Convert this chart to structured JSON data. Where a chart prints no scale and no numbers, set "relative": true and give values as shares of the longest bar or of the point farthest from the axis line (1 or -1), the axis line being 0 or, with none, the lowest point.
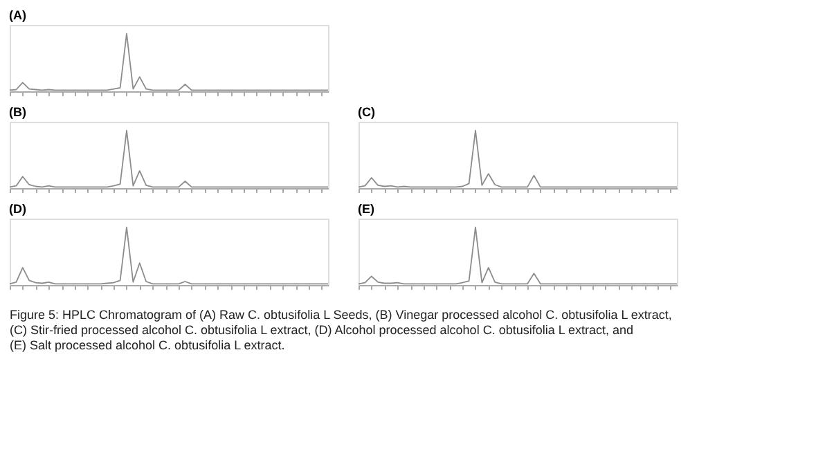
{
  "chart_data": [
    {
      "type": "line",
      "title": "(A)",
      "relative": true,
      "tick_labels": false,
      "grid": false,
      "categories": [
        null,
        null,
        null,
        null,
        null,
        null,
        null,
        null,
        null,
        null,
        null,
        null,
        null,
        null,
        null,
        null,
        null,
        null,
        null,
        null,
        null,
        null,
        null,
        null,
        null,
        null,
        null,
        null,
        null,
        null,
        null,
        null,
        null,
        null,
        null,
        null,
        null,
        null,
        null,
        null,
        null,
        null,
        null,
        null,
        null,
        null,
        null,
        null,
        null,
        null
      ],
      "series": [
        {
          "color": "#8c8c8c",
          "values": [
            0.02,
            0.03,
            0.15,
            0.04,
            0.03,
            0.02,
            0.03,
            0.02,
            0.02,
            0.02,
            0.02,
            0.02,
            0.02,
            0.02,
            0.02,
            0.02,
            0.04,
            0.06,
            1,
            0.04,
            0.25,
            0.04,
            0.02,
            0.02,
            0.02,
            0.02,
            0.02,
            0.12,
            0.02,
            0.02,
            0.02,
            0.02,
            0.02,
            0.02,
            0.02,
            0.02,
            0.02,
            0.02,
            0.02,
            0.02,
            0.02,
            0.02,
            0.02,
            0.02,
            0.02,
            0.02,
            0.02,
            0.02,
            0.02,
            0.02
          ]
        }
      ]
    },
    {
      "type": "line",
      "title": "(B)",
      "relative": true,
      "tick_labels": false,
      "grid": false,
      "categories": [
        null,
        null,
        null,
        null,
        null,
        null,
        null,
        null,
        null,
        null,
        null,
        null,
        null,
        null,
        null,
        null,
        null,
        null,
        null,
        null,
        null,
        null,
        null,
        null,
        null,
        null,
        null,
        null,
        null,
        null,
        null,
        null,
        null,
        null,
        null,
        null,
        null,
        null,
        null,
        null,
        null,
        null,
        null,
        null,
        null,
        null,
        null,
        null,
        null,
        null
      ],
      "series": [
        {
          "color": "#8c8c8c",
          "values": [
            0.02,
            0.04,
            0.2,
            0.06,
            0.03,
            0.02,
            0.04,
            0.02,
            0.02,
            0.02,
            0.02,
            0.02,
            0.02,
            0.02,
            0.02,
            0.02,
            0.04,
            0.07,
            1,
            0.04,
            0.3,
            0.05,
            0.02,
            0.02,
            0.02,
            0.02,
            0.02,
            0.12,
            0.02,
            0.02,
            0.02,
            0.02,
            0.02,
            0.02,
            0.02,
            0.02,
            0.02,
            0.02,
            0.02,
            0.02,
            0.02,
            0.02,
            0.02,
            0.02,
            0.02,
            0.02,
            0.02,
            0.02,
            0.02,
            0.02
          ]
        }
      ]
    },
    {
      "type": "line",
      "title": "(C)",
      "relative": true,
      "tick_labels": false,
      "grid": false,
      "categories": [
        null,
        null,
        null,
        null,
        null,
        null,
        null,
        null,
        null,
        null,
        null,
        null,
        null,
        null,
        null,
        null,
        null,
        null,
        null,
        null,
        null,
        null,
        null,
        null,
        null,
        null,
        null,
        null,
        null,
        null,
        null,
        null,
        null,
        null,
        null,
        null,
        null,
        null,
        null,
        null,
        null,
        null,
        null,
        null,
        null,
        null,
        null,
        null,
        null,
        null
      ],
      "series": [
        {
          "color": "#8c8c8c",
          "values": [
            0.02,
            0.04,
            0.18,
            0.05,
            0.03,
            0.04,
            0.02,
            0.03,
            0.02,
            0.02,
            0.02,
            0.02,
            0.02,
            0.02,
            0.02,
            0.02,
            0.03,
            0.08,
            1,
            0.05,
            0.25,
            0.06,
            0.02,
            0.02,
            0.02,
            0.02,
            0.02,
            0.22,
            0.02,
            0.02,
            0.02,
            0.02,
            0.02,
            0.02,
            0.02,
            0.02,
            0.02,
            0.02,
            0.02,
            0.02,
            0.02,
            0.02,
            0.02,
            0.02,
            0.02,
            0.02,
            0.02,
            0.02,
            0.02,
            0.02
          ]
        }
      ]
    },
    {
      "type": "line",
      "title": "(D)",
      "relative": true,
      "tick_labels": false,
      "grid": false,
      "categories": [
        null,
        null,
        null,
        null,
        null,
        null,
        null,
        null,
        null,
        null,
        null,
        null,
        null,
        null,
        null,
        null,
        null,
        null,
        null,
        null,
        null,
        null,
        null,
        null,
        null,
        null,
        null,
        null,
        null,
        null,
        null,
        null,
        null,
        null,
        null,
        null,
        null,
        null,
        null,
        null,
        null,
        null,
        null,
        null,
        null,
        null,
        null,
        null,
        null,
        null
      ],
      "series": [
        {
          "color": "#8c8c8c",
          "values": [
            0.02,
            0.05,
            0.3,
            0.08,
            0.04,
            0.03,
            0.05,
            0.02,
            0.02,
            0.02,
            0.02,
            0.02,
            0.02,
            0.02,
            0.02,
            0.03,
            0.04,
            0.08,
            1,
            0.05,
            0.38,
            0.06,
            0.02,
            0.02,
            0.02,
            0.02,
            0.02,
            0.06,
            0.02,
            0.02,
            0.02,
            0.02,
            0.02,
            0.02,
            0.02,
            0.02,
            0.02,
            0.02,
            0.02,
            0.02,
            0.02,
            0.02,
            0.02,
            0.02,
            0.02,
            0.02,
            0.02,
            0.02,
            0.02,
            0.02
          ]
        }
      ]
    },
    {
      "type": "line",
      "title": "(E)",
      "relative": true,
      "tick_labels": false,
      "grid": false,
      "categories": [
        null,
        null,
        null,
        null,
        null,
        null,
        null,
        null,
        null,
        null,
        null,
        null,
        null,
        null,
        null,
        null,
        null,
        null,
        null,
        null,
        null,
        null,
        null,
        null,
        null,
        null,
        null,
        null,
        null,
        null,
        null,
        null,
        null,
        null,
        null,
        null,
        null,
        null,
        null,
        null,
        null,
        null,
        null,
        null,
        null,
        null,
        null,
        null,
        null,
        null
      ],
      "series": [
        {
          "color": "#8c8c8c",
          "values": [
            0.02,
            0.04,
            0.15,
            0.05,
            0.03,
            0.03,
            0.04,
            0.02,
            0.02,
            0.02,
            0.02,
            0.02,
            0.02,
            0.02,
            0.02,
            0.02,
            0.04,
            0.07,
            1,
            0.04,
            0.3,
            0.05,
            0.02,
            0.02,
            0.02,
            0.02,
            0.02,
            0.2,
            0.02,
            0.02,
            0.02,
            0.02,
            0.02,
            0.02,
            0.02,
            0.02,
            0.02,
            0.02,
            0.02,
            0.02,
            0.02,
            0.02,
            0.02,
            0.02,
            0.02,
            0.02,
            0.02,
            0.02,
            0.02,
            0.02
          ]
        }
      ],
      "annotations": [
        "Figure 5: HPLC Chromatogram of (A) Raw C. obtusifolia L Seeds, (B) Vinegar processed alcohol C. obtusifolia L extract, (C) Stir-fried processed alcohol C. obtusifolia L extract, (D) Alcohol processed alcohol C. obtusifolia L extract, and (E) Salt processed alcohol C. obtusifolia L extract."
      ]
    }
  ]
}
